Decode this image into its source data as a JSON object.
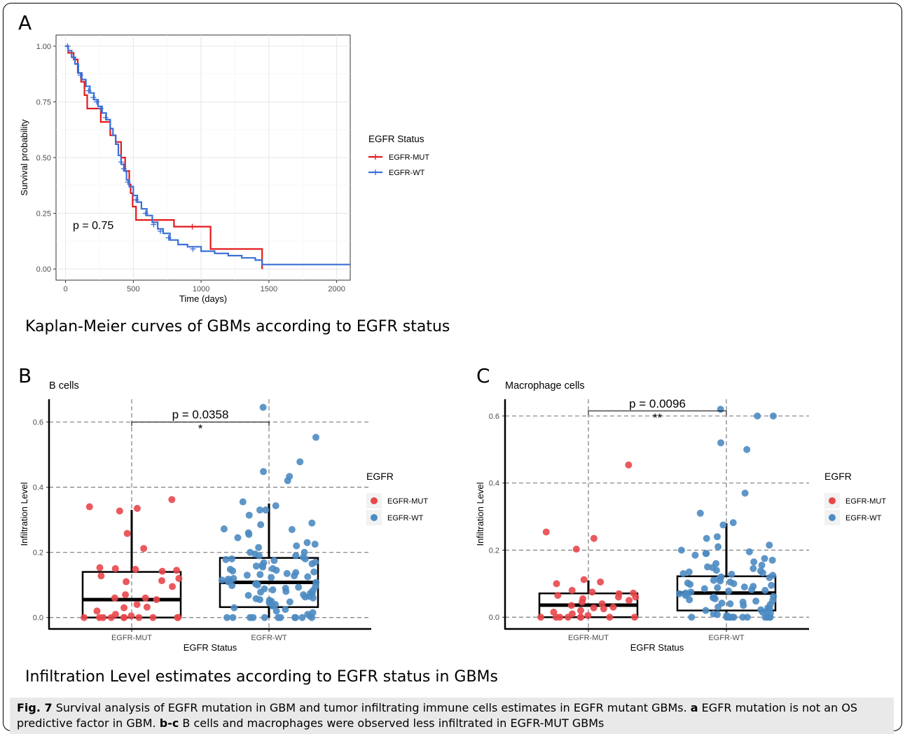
{
  "figure": {
    "panels": {
      "a": "A",
      "b": "B",
      "c": "C"
    },
    "heading_km": "Kaplan-Meier curves of GBMs according to EGFR status",
    "heading_infiltration": "Infiltration Level estimates according to EGFR status in GBMs",
    "caption": {
      "fig_label": "Fig. 7",
      "text1": " Survival analysis of EGFR mutation in GBM and tumor infiltrating immune cells estimates in EGFR mutant GBMs. ",
      "a_label": "a",
      "text2": " EGFR mutation is not an OS predictive factor in GBM. ",
      "bc_label": "b-c",
      "text3": " B cells and macrophages were observed less infiltrated in EGFR-MUT GBMs"
    }
  },
  "chart_data": [
    {
      "type": "line",
      "panel": "A",
      "xlabel": "Time (days)",
      "ylabel": "Survival probability",
      "xlim": [
        -70,
        2100
      ],
      "ylim": [
        -0.05,
        1.05
      ],
      "x_ticks": [
        0,
        500,
        1000,
        1500,
        2000
      ],
      "y_ticks": [
        0.0,
        0.25,
        0.5,
        0.75,
        1.0
      ],
      "y_tick_labels": [
        "0.00",
        "0.25",
        "0.50",
        "0.75",
        "1.00"
      ],
      "annotation": "p = 0.75",
      "grid": true,
      "legend": {
        "title": "EGFR Status",
        "position": "right"
      },
      "series": [
        {
          "name": "EGFR-MUT",
          "color": "#e41a1c",
          "points": [
            [
              0,
              1.0
            ],
            [
              20,
              0.97
            ],
            [
              60,
              0.94
            ],
            [
              90,
              0.88
            ],
            [
              115,
              0.84
            ],
            [
              140,
              0.78
            ],
            [
              160,
              0.72
            ],
            [
              230,
              0.72
            ],
            [
              260,
              0.66
            ],
            [
              300,
              0.66
            ],
            [
              330,
              0.6
            ],
            [
              355,
              0.6
            ],
            [
              370,
              0.57
            ],
            [
              400,
              0.57
            ],
            [
              410,
              0.5
            ],
            [
              430,
              0.5
            ],
            [
              440,
              0.44
            ],
            [
              455,
              0.44
            ],
            [
              470,
              0.38
            ],
            [
              480,
              0.34
            ],
            [
              495,
              0.28
            ],
            [
              520,
              0.22
            ],
            [
              790,
              0.22
            ],
            [
              800,
              0.19
            ],
            [
              1060,
              0.19
            ],
            [
              1070,
              0.09
            ],
            [
              1440,
              0.09
            ],
            [
              1450,
              0.0
            ]
          ],
          "censors": [
            [
              935,
              0.19
            ]
          ]
        },
        {
          "name": "EGFR-WT",
          "color": "#3a6fd8",
          "points": [
            [
              0,
              1.0
            ],
            [
              20,
              0.98
            ],
            [
              45,
              0.95
            ],
            [
              70,
              0.92
            ],
            [
              95,
              0.88
            ],
            [
              120,
              0.85
            ],
            [
              150,
              0.82
            ],
            [
              180,
              0.79
            ],
            [
              210,
              0.76
            ],
            [
              240,
              0.73
            ],
            [
              270,
              0.7
            ],
            [
              300,
              0.67
            ],
            [
              330,
              0.63
            ],
            [
              350,
              0.6
            ],
            [
              370,
              0.56
            ],
            [
              390,
              0.51
            ],
            [
              410,
              0.47
            ],
            [
              430,
              0.44
            ],
            [
              450,
              0.4
            ],
            [
              470,
              0.37
            ],
            [
              500,
              0.33
            ],
            [
              530,
              0.3
            ],
            [
              560,
              0.27
            ],
            [
              600,
              0.24
            ],
            [
              640,
              0.21
            ],
            [
              680,
              0.18
            ],
            [
              720,
              0.16
            ],
            [
              770,
              0.13
            ],
            [
              830,
              0.11
            ],
            [
              900,
              0.1
            ],
            [
              1000,
              0.08
            ],
            [
              1100,
              0.07
            ],
            [
              1200,
              0.06
            ],
            [
              1300,
              0.05
            ],
            [
              1400,
              0.04
            ],
            [
              1450,
              0.02
            ],
            [
              2100,
              0.02
            ]
          ],
          "censors": [
            [
              15,
              1.0
            ],
            [
              60,
              0.95
            ],
            [
              110,
              0.87
            ],
            [
              170,
              0.8
            ],
            [
              205,
              0.77
            ],
            [
              230,
              0.75
            ],
            [
              260,
              0.72
            ],
            [
              295,
              0.68
            ],
            [
              410,
              0.48
            ],
            [
              430,
              0.45
            ],
            [
              460,
              0.39
            ],
            [
              520,
              0.31
            ],
            [
              590,
              0.25
            ],
            [
              650,
              0.2
            ],
            [
              700,
              0.17
            ],
            [
              760,
              0.14
            ],
            [
              940,
              0.09
            ]
          ]
        }
      ]
    },
    {
      "type": "scatter",
      "panel": "B",
      "title": "B cells",
      "xlabel": "EGFR Status",
      "ylabel": "Infiltration Level",
      "categories": [
        "EGFR-MUT",
        "EGFR-WT"
      ],
      "ylim": [
        -0.035,
        0.67
      ],
      "y_ticks": [
        0.0,
        0.2,
        0.4,
        0.6
      ],
      "y_tick_labels": [
        "0.0",
        "0.2",
        "0.4",
        "0.6"
      ],
      "bracket": {
        "label": "p = 0.0358",
        "stars": "*",
        "y": 0.6
      },
      "legend": {
        "title": "EGFR",
        "position": "right"
      },
      "boxes": [
        {
          "category": "EGFR-MUT",
          "min": 0.0,
          "q1": 0.0,
          "median": 0.055,
          "q3": 0.14,
          "max": 0.33
        },
        {
          "category": "EGFR-WT",
          "min": 0.0,
          "q1": 0.032,
          "median": 0.108,
          "q3": 0.183,
          "max": 0.35
        }
      ],
      "series": [
        {
          "name": "EGFR-MUT",
          "color": "#e8474b",
          "points": [
            0.362,
            0.34,
            0.335,
            0.327,
            0.258,
            0.212,
            0.153,
            0.15,
            0.148,
            0.145,
            0.142,
            0.128,
            0.12,
            0.113,
            0.11,
            0.095,
            0.07,
            0.06,
            0.06,
            0.055,
            0.04,
            0.032,
            0.03,
            0.02,
            0.01,
            0.005,
            0.0,
            0.0,
            0.0,
            0.0,
            0.0,
            0.0,
            0.0,
            0.0,
            0.0,
            0.0
          ]
        },
        {
          "name": "EGFR-WT",
          "color": "#4d8bc2",
          "points": [
            0.645,
            0.553,
            0.478,
            0.448,
            0.433,
            0.42,
            0.355,
            0.343,
            0.33,
            0.33,
            0.314,
            0.29,
            0.285,
            0.272,
            0.27,
            0.26,
            0.255,
            0.245,
            0.23,
            0.225,
            0.22,
            0.215,
            0.2,
            0.2,
            0.195,
            0.19,
            0.19,
            0.185,
            0.18,
            0.18,
            0.178,
            0.175,
            0.17,
            0.168,
            0.165,
            0.16,
            0.158,
            0.155,
            0.15,
            0.148,
            0.145,
            0.143,
            0.14,
            0.138,
            0.135,
            0.132,
            0.13,
            0.128,
            0.125,
            0.123,
            0.12,
            0.118,
            0.115,
            0.112,
            0.11,
            0.108,
            0.105,
            0.103,
            0.1,
            0.098,
            0.095,
            0.093,
            0.09,
            0.088,
            0.085,
            0.083,
            0.08,
            0.078,
            0.075,
            0.073,
            0.07,
            0.068,
            0.065,
            0.063,
            0.06,
            0.058,
            0.055,
            0.053,
            0.05,
            0.048,
            0.045,
            0.04,
            0.035,
            0.03,
            0.025,
            0.02,
            0.015,
            0.01,
            0.005,
            0.0,
            0.0,
            0.0,
            0.0,
            0.0,
            0.0,
            0.0,
            0.0,
            0.0,
            0.0,
            0.0
          ]
        }
      ]
    },
    {
      "type": "scatter",
      "panel": "C",
      "title": "Macrophage cells",
      "xlabel": "EGFR Status",
      "ylabel": "Infiltration Level",
      "categories": [
        "EGFR-MUT",
        "EGFR-WT"
      ],
      "ylim": [
        -0.035,
        0.65
      ],
      "y_ticks": [
        0.0,
        0.2,
        0.4,
        0.6
      ],
      "y_tick_labels": [
        "0.0",
        "0.2",
        "0.4",
        "0.6"
      ],
      "bracket": {
        "label": "p = 0.0096",
        "stars": "**",
        "y": 0.615
      },
      "legend": {
        "title": "EGFR",
        "position": "right"
      },
      "boxes": [
        {
          "category": "EGFR-MUT",
          "min": 0.0,
          "q1": 0.0,
          "median": 0.036,
          "q3": 0.071,
          "max": 0.11
        },
        {
          "category": "EGFR-WT",
          "min": 0.0,
          "q1": 0.02,
          "median": 0.072,
          "q3": 0.122,
          "max": 0.28
        }
      ],
      "series": [
        {
          "name": "EGFR-MUT",
          "color": "#e8474b",
          "points": [
            0.454,
            0.254,
            0.235,
            0.203,
            0.112,
            0.105,
            0.1,
            0.08,
            0.075,
            0.072,
            0.07,
            0.065,
            0.06,
            0.06,
            0.055,
            0.05,
            0.045,
            0.04,
            0.035,
            0.03,
            0.028,
            0.025,
            0.02,
            0.015,
            0.01,
            0.005,
            0.0,
            0.0,
            0.0,
            0.0,
            0.0,
            0.0,
            0.0,
            0.0
          ]
        },
        {
          "name": "EGFR-WT",
          "color": "#4d8bc2",
          "points": [
            0.62,
            0.6,
            0.6,
            0.52,
            0.5,
            0.37,
            0.31,
            0.282,
            0.275,
            0.24,
            0.235,
            0.215,
            0.21,
            0.2,
            0.195,
            0.19,
            0.19,
            0.185,
            0.175,
            0.17,
            0.165,
            0.16,
            0.155,
            0.15,
            0.148,
            0.145,
            0.14,
            0.138,
            0.135,
            0.132,
            0.13,
            0.128,
            0.125,
            0.12,
            0.118,
            0.115,
            0.11,
            0.108,
            0.105,
            0.102,
            0.1,
            0.098,
            0.095,
            0.092,
            0.09,
            0.088,
            0.085,
            0.082,
            0.08,
            0.078,
            0.075,
            0.072,
            0.07,
            0.068,
            0.065,
            0.062,
            0.06,
            0.058,
            0.055,
            0.052,
            0.05,
            0.048,
            0.045,
            0.042,
            0.04,
            0.038,
            0.035,
            0.03,
            0.028,
            0.025,
            0.022,
            0.02,
            0.018,
            0.015,
            0.012,
            0.01,
            0.008,
            0.005,
            0.0,
            0.0,
            0.0,
            0.0,
            0.0,
            0.0,
            0.0,
            0.0,
            0.0,
            0.0,
            0.0,
            0.0
          ]
        }
      ]
    }
  ]
}
